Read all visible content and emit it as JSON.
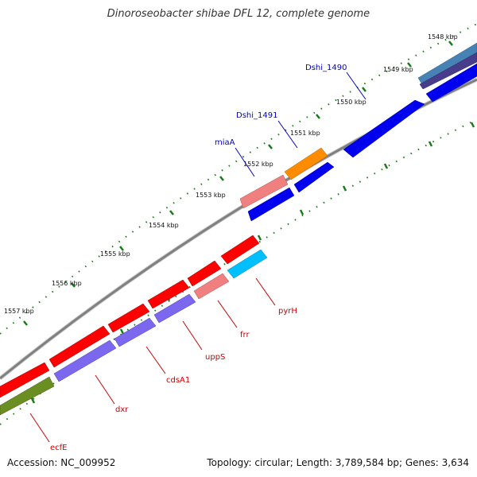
{
  "title": "Dinoroseobacter shibae DFL 12, complete genome",
  "footer": {
    "accession": "Accession: NC_009952",
    "summary": "Topology: circular; Length: 3,789,584 bp; Genes: 3,634"
  },
  "colors": {
    "backbone": "#808080",
    "tick": "#1a7a1a",
    "label_top": "#0000cc",
    "label_bottom": "#cc0000"
  },
  "ticks": [
    {
      "label": "1548 kbp"
    },
    {
      "label": "1549 kbp"
    },
    {
      "label": "1550 kbp"
    },
    {
      "label": "1551 kbp"
    },
    {
      "label": "1552 kbp"
    },
    {
      "label": "1553 kbp"
    },
    {
      "label": "1554 kbp"
    },
    {
      "label": "1555 kbp"
    },
    {
      "label": "1556 kbp"
    },
    {
      "label": "1557 kbp"
    }
  ],
  "gene_labels": {
    "top": [
      "Dshi_1490",
      "Dshi_1491",
      "miaA"
    ],
    "bottom": [
      "pyrH",
      "frr",
      "uppS",
      "cdsA1",
      "dxr",
      "ecfE"
    ]
  }
}
